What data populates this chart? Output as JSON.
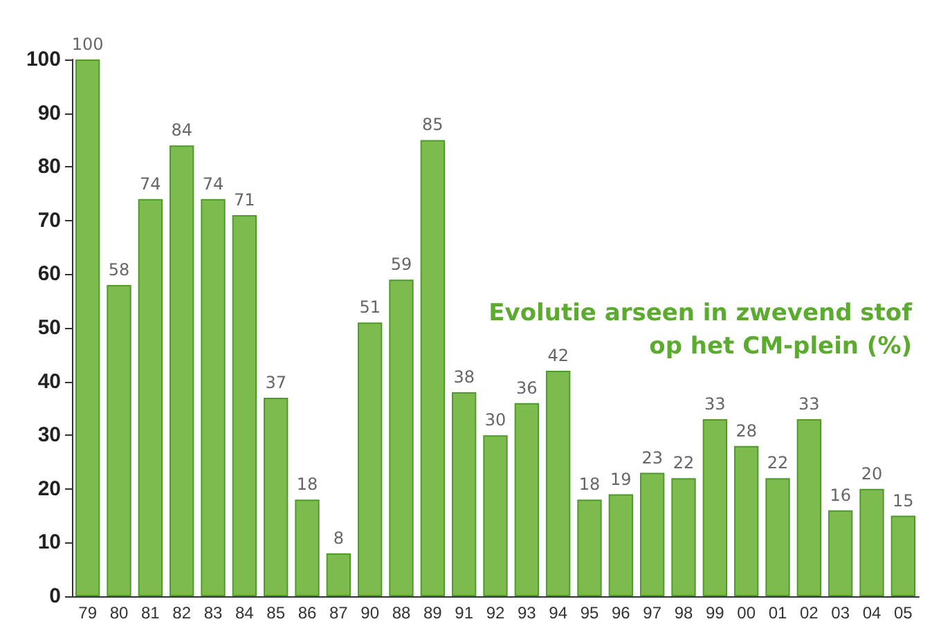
{
  "chart_data": {
    "type": "bar",
    "title": "Evolutie arseen in zwevend stof",
    "subtitle": "op het CM-plein (%)",
    "categories": [
      "79",
      "80",
      "81",
      "82",
      "83",
      "84",
      "85",
      "86",
      "87",
      "90",
      "88",
      "89",
      "91",
      "92",
      "93",
      "94",
      "95",
      "96",
      "97",
      "98",
      "99",
      "00",
      "01",
      "02",
      "03",
      "04",
      "05"
    ],
    "values": [
      100,
      58,
      74,
      84,
      74,
      71,
      37,
      18,
      8,
      51,
      59,
      85,
      38,
      30,
      36,
      42,
      18,
      19,
      23,
      22,
      33,
      28,
      22,
      33,
      16,
      20,
      15
    ],
    "color": "#7dbb4f",
    "ylim": [
      0,
      100
    ],
    "yticks": [
      0,
      10,
      20,
      30,
      40,
      50,
      60,
      70,
      80,
      90,
      100
    ],
    "grid": false,
    "data_labels": true
  }
}
